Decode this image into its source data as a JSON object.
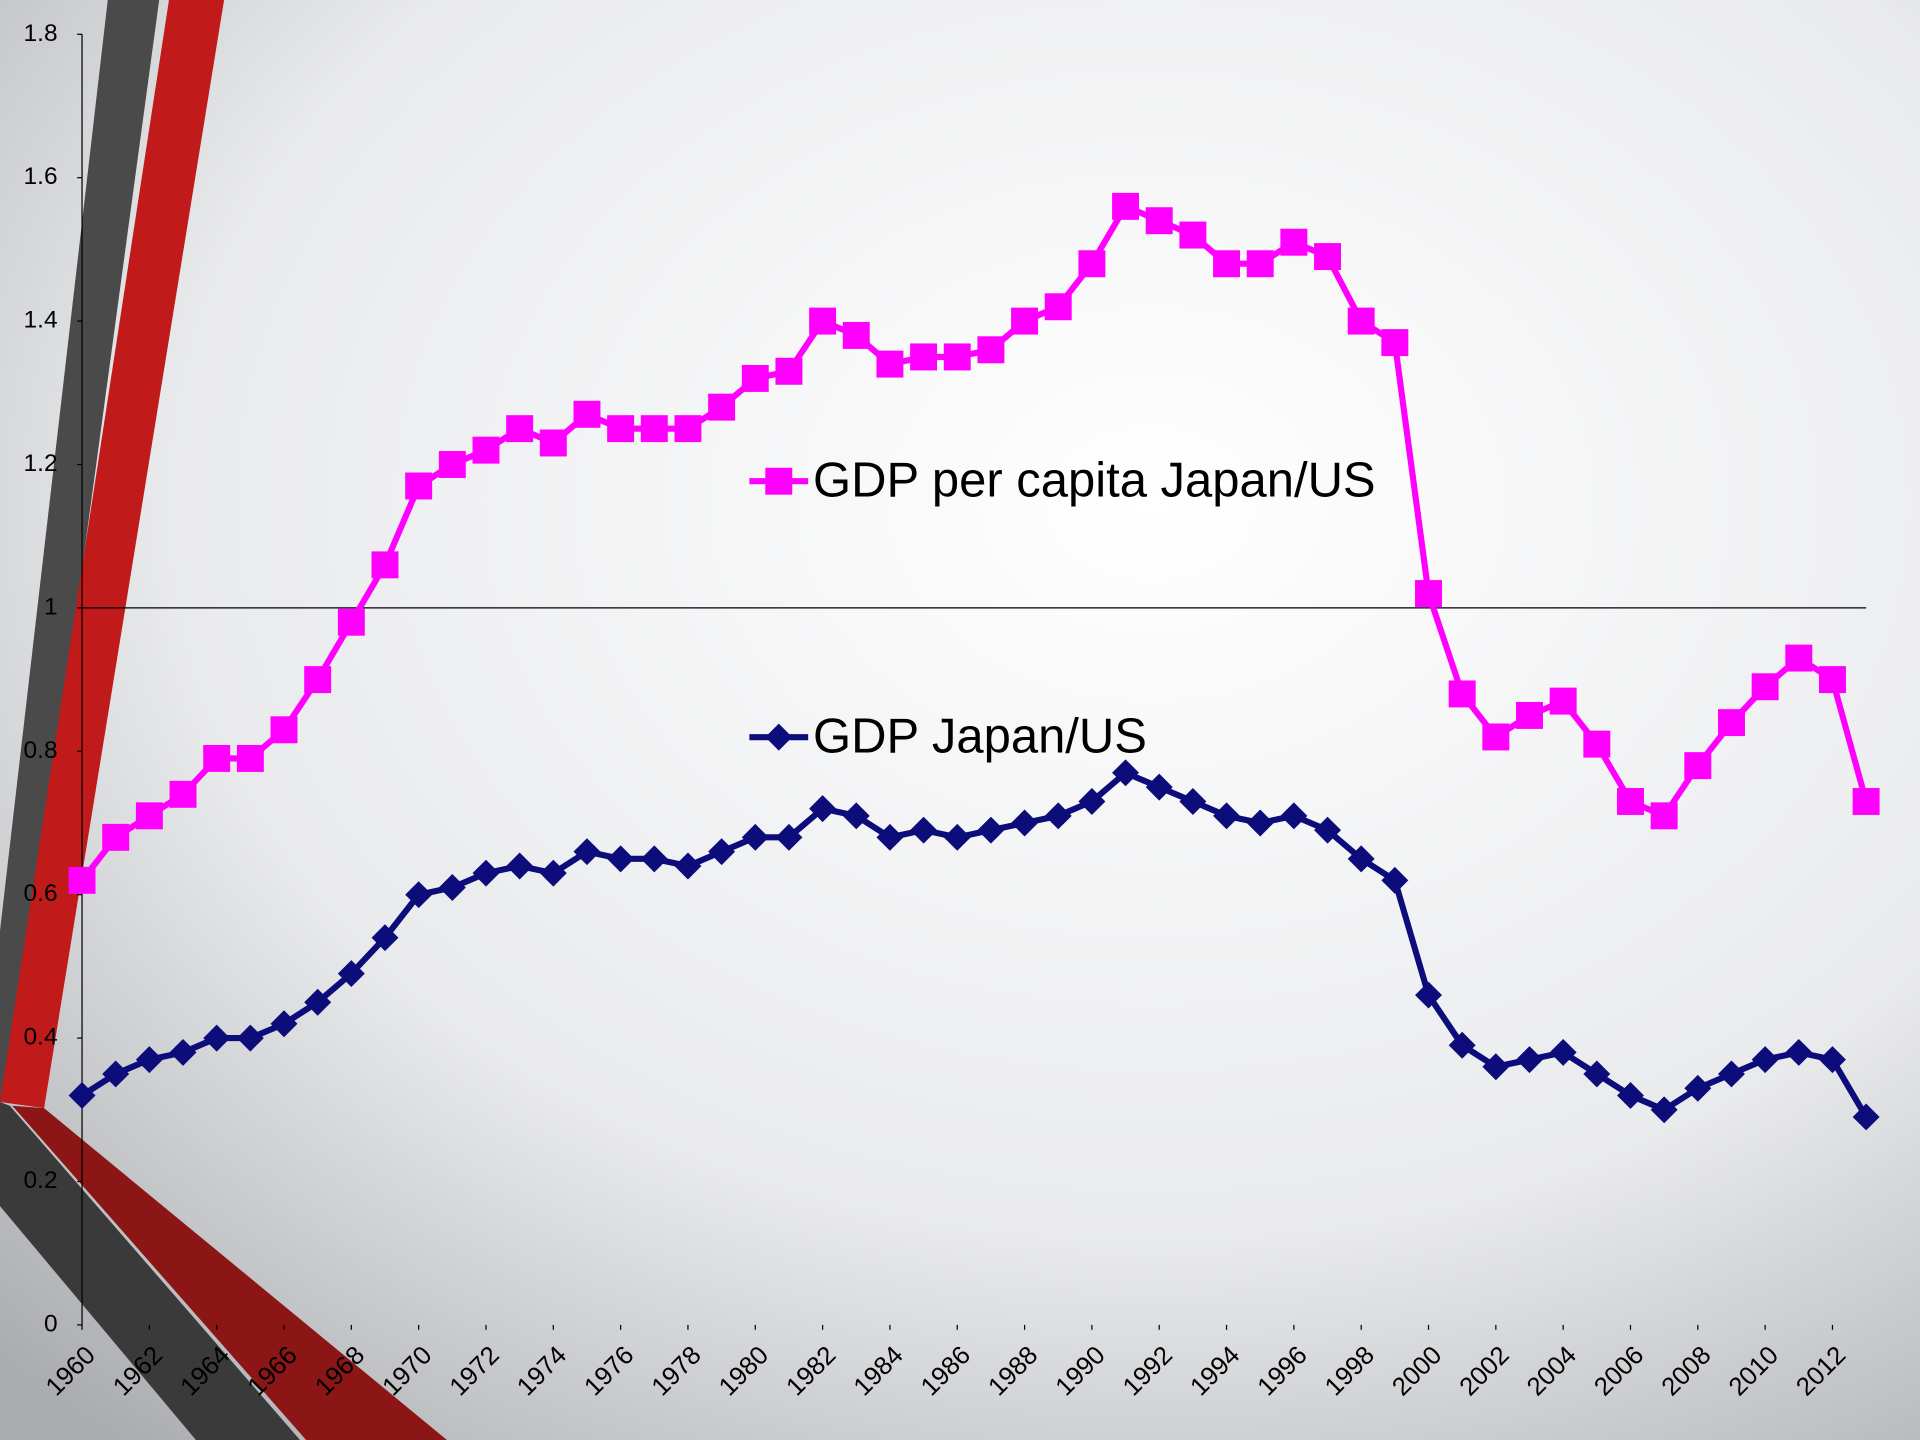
{
  "chart_data": {
    "type": "line",
    "x": [
      1960,
      1961,
      1962,
      1963,
      1964,
      1965,
      1966,
      1967,
      1968,
      1969,
      1970,
      1971,
      1972,
      1973,
      1974,
      1975,
      1976,
      1977,
      1978,
      1979,
      1980,
      1981,
      1982,
      1983,
      1984,
      1985,
      1986,
      1987,
      1988,
      1989,
      1990,
      1991,
      1992,
      1993,
      1994,
      1995,
      1996,
      1997,
      1998,
      1999,
      2000,
      2001,
      2002,
      2003,
      2004,
      2005,
      2006,
      2007,
      2008,
      2009,
      2010,
      2011,
      2012,
      2013
    ],
    "xlim": [
      1960,
      2013
    ],
    "xticks": [
      1960,
      1962,
      1964,
      1966,
      1968,
      1970,
      1972,
      1974,
      1976,
      1978,
      1980,
      1982,
      1984,
      1986,
      1988,
      1990,
      1992,
      1994,
      1996,
      1998,
      2000,
      2002,
      2004,
      2006,
      2008,
      2010,
      2012
    ],
    "ylim": [
      0,
      1.8
    ],
    "yticks": [
      0,
      0.2,
      0.4,
      0.6,
      0.8,
      1,
      1.2,
      1.4,
      1.6,
      1.8
    ],
    "reference_line": 1,
    "legend": "center",
    "series": [
      {
        "name": "GDP per capita Japan/US",
        "color": "#ff00ff",
        "marker": "square",
        "values": [
          0.62,
          0.68,
          0.71,
          0.74,
          0.79,
          0.79,
          0.83,
          0.9,
          0.98,
          1.06,
          1.17,
          1.2,
          1.22,
          1.25,
          1.23,
          1.27,
          1.25,
          1.25,
          1.25,
          1.28,
          1.32,
          1.33,
          1.4,
          1.38,
          1.34,
          1.35,
          1.35,
          1.36,
          1.4,
          1.42,
          1.48,
          1.56,
          1.54,
          1.52,
          1.48,
          1.48,
          1.51,
          1.49,
          1.4,
          1.37,
          1.02,
          0.88,
          0.82,
          0.85,
          0.87,
          0.81,
          0.73,
          0.71,
          0.78,
          0.84,
          0.89,
          0.93,
          0.9,
          0.73
        ]
      },
      {
        "name": "GDP Japan/US",
        "color": "#0c0c7a",
        "marker": "diamond",
        "values": [
          0.32,
          0.35,
          0.37,
          0.38,
          0.4,
          0.4,
          0.42,
          0.45,
          0.49,
          0.54,
          0.6,
          0.61,
          0.63,
          0.64,
          0.63,
          0.66,
          0.65,
          0.65,
          0.64,
          0.66,
          0.68,
          0.68,
          0.72,
          0.71,
          0.68,
          0.69,
          0.68,
          0.69,
          0.7,
          0.71,
          0.73,
          0.77,
          0.75,
          0.73,
          0.71,
          0.7,
          0.71,
          0.69,
          0.65,
          0.62,
          0.46,
          0.39,
          0.36,
          0.37,
          0.38,
          0.35,
          0.32,
          0.3,
          0.33,
          0.35,
          0.37,
          0.38,
          0.37,
          0.29
        ]
      }
    ]
  }
}
